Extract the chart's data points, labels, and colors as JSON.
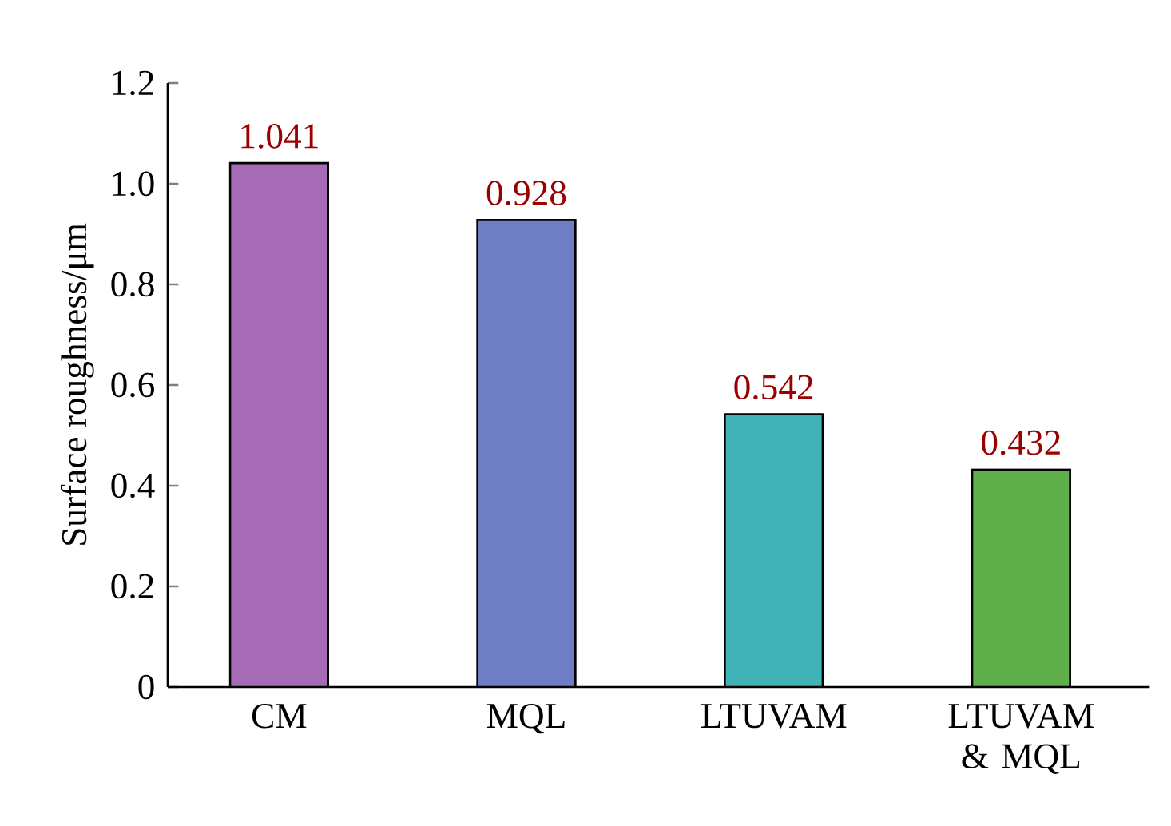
{
  "chart_data": {
    "type": "bar",
    "ylabel": "Surface roughness/μm",
    "categories": [
      "CM",
      "MQL",
      "LTUVAM",
      "LTUVAM & MQL"
    ],
    "values": [
      1.041,
      0.928,
      0.542,
      0.432
    ],
    "value_labels": [
      "1.041",
      "0.928",
      "0.542",
      "0.432"
    ],
    "colors": [
      "#a56bb5",
      "#6e7ec4",
      "#3fb3b5",
      "#5fb04a"
    ],
    "ylim": [
      0,
      1.2
    ],
    "yticks": [
      0,
      0.2,
      0.4,
      0.6,
      0.8,
      {
        "value": 1.0,
        "label": "1.0"
      },
      {
        "value": 1.2,
        "label": "1.2"
      }
    ],
    "grid": false
  }
}
